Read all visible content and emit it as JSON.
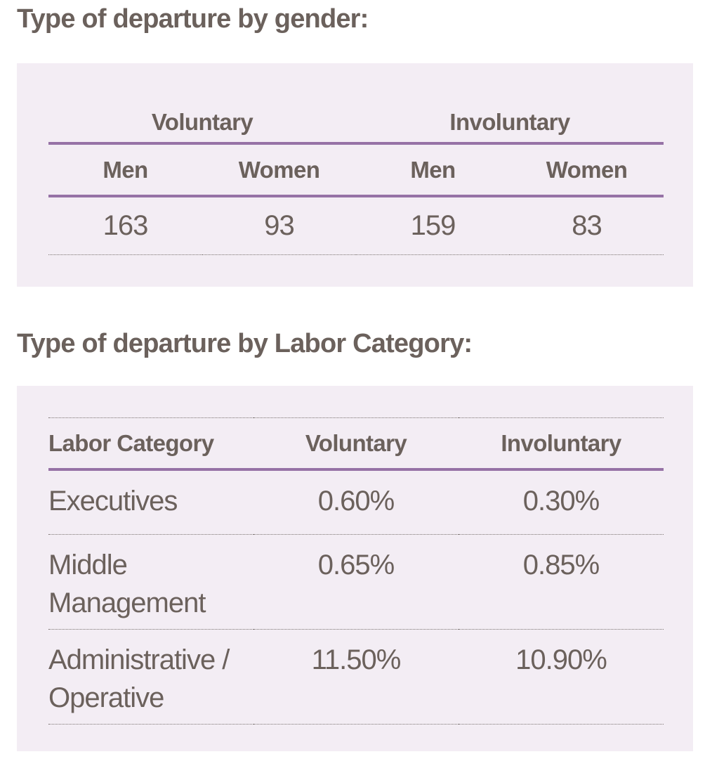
{
  "gender_section": {
    "title": "Type of departure by gender:",
    "groups": [
      "Voluntary",
      "Involuntary"
    ],
    "subheaders": [
      "Men",
      "Women",
      "Men",
      "Women"
    ],
    "values": [
      "163",
      "93",
      "159",
      "83"
    ]
  },
  "labor_section": {
    "title": "Type of departure by Labor Category:",
    "headers": [
      "Labor Category",
      "Voluntary",
      "Involuntary"
    ],
    "rows": [
      {
        "category": "Executives",
        "voluntary": "0.60%",
        "involuntary": "0.30%"
      },
      {
        "category": "Middle Management",
        "voluntary": "0.65%",
        "involuntary": "0.85%"
      },
      {
        "category": "Administrative / Operative",
        "voluntary": "11.50%",
        "involuntary": "10.90%"
      }
    ]
  },
  "colors": {
    "text": "#6b615c",
    "panel_background": "#f3edf4",
    "rule_accent": "#9672a6"
  }
}
